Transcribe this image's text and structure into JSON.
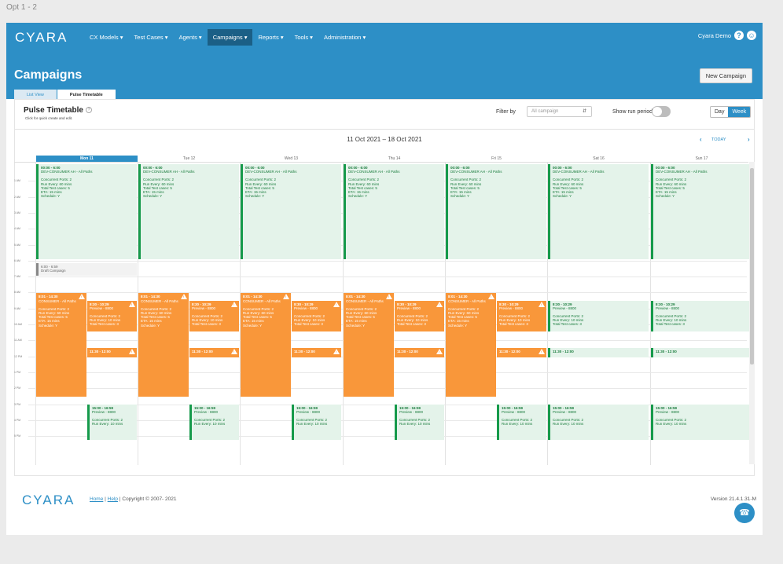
{
  "opt_label": "Opt 1 - 2",
  "nav": {
    "logo": "CYARA",
    "items": [
      "CX Models ▾",
      "Test Cases ▾",
      "Agents ▾",
      "Campaigns ▾",
      "Reports ▾",
      "Tools ▾",
      "Administration ▾"
    ],
    "active": "Campaigns ▾",
    "user": "Cyara Demo",
    "help_glyph": "?",
    "user_glyph": "☺"
  },
  "page": {
    "title": "Campaigns",
    "new_campaign": "New Campaign",
    "tabs": [
      "List View",
      "Pulse Timetable"
    ],
    "active_tab": "Pulse Timetable"
  },
  "timetable": {
    "title": "Pulse Timetable",
    "help_glyph": "?",
    "subtitle": "Click for quick create and edit.",
    "filter_label": "Filter by",
    "filter_value": "All campaign",
    "show_run_label": "Show run periods",
    "day_label": "Day",
    "week_label": "Week",
    "date_range": "11 Oct 2021 – 18 Oct 2021",
    "prev": "‹",
    "next": "›",
    "today": "TODAY"
  },
  "days": [
    "Mon 11",
    "Tue 12",
    "Wed 13",
    "Thu 14",
    "Fri 15",
    "Sat 16",
    "Sun 17"
  ],
  "hours": [
    "1 AM",
    "2 AM",
    "3 AM",
    "4 AM",
    "5 AM",
    "6 AM",
    "7 AM",
    "8 AM",
    "9 AM",
    "10 AM",
    "11 AM",
    "12 PM",
    "1 PM",
    "2 PM",
    "3 PM",
    "4 PM",
    "5 PM"
  ],
  "events": {
    "night": {
      "time": "00:00 - 6:00",
      "name": "DEV-CONSUMER AH - All Paths",
      "lines": [
        "Concurrent Ports: 2",
        "Run Every: 60 mins",
        "Total Test cases: 5",
        "ETA: 15 mins",
        "Schedule: Y"
      ]
    },
    "draft": {
      "time": "6:00 - 6:59",
      "name": "Draft Campaign"
    },
    "consumer": {
      "time": "8:01 - 14:30",
      "name": "CONSUMER - All Paths",
      "lines": [
        "Concurrent Ports: 2",
        "Run Every: 60 mins",
        "Total Test cases: 5",
        "ETA: 15 mins",
        "Schedule: Y"
      ]
    },
    "preview": {
      "time": "8:30 - 10:29",
      "name": "Preview - 8800",
      "lines": [
        "Concurrent Ports: 2",
        "Run Every: 10 mins",
        "Total Test cases: 3"
      ]
    },
    "midday": {
      "time": "11:30 - 12:00"
    },
    "afternoon": {
      "time": "15:00 - 16:59",
      "name": "Preview - 8800",
      "lines": [
        "Concurrent Ports: 2",
        "Run Every: 10 mins"
      ]
    }
  },
  "footer": {
    "logo": "CYARA",
    "home": "Home",
    "help": "Help",
    "sep": "|",
    "copyright": "Copyright © 2007- 2021",
    "version": "Version 21.4.1.31-M",
    "chat_glyph": "☎"
  },
  "colors": {
    "brand": "#2d8fc6",
    "green": "#169a4b",
    "orange": "#f9973a"
  }
}
